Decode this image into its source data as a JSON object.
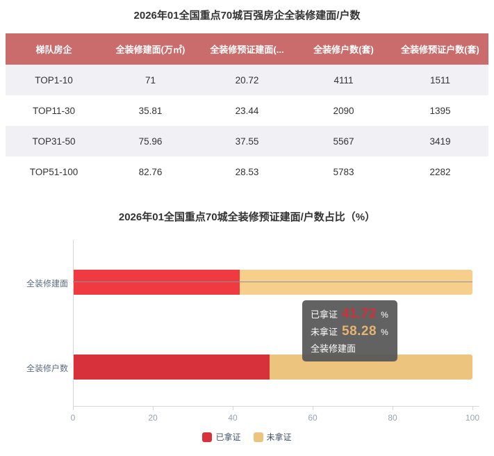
{
  "table": {
    "title": "2026年01全国重点70城百强房企全装修建面/户数",
    "columns": [
      "梯队房企",
      "全装修建面(万㎡)",
      "全装修预证建面(...",
      "全装修户数(套)",
      "全装修预证户数(套)"
    ],
    "rows": [
      [
        "TOP1-10",
        "71",
        "20.72",
        "4111",
        "1511"
      ],
      [
        "TOP11-30",
        "35.81",
        "23.44",
        "2090",
        "1395"
      ],
      [
        "TOP31-50",
        "75.96",
        "37.55",
        "5567",
        "3419"
      ],
      [
        "TOP51-100",
        "82.76",
        "28.53",
        "5783",
        "2282"
      ]
    ],
    "header_bg": "#ca6c6c",
    "stripe_bg": "#f0f0f5"
  },
  "chart": {
    "title": "2026年01全国重点70城全装修预证建面/户数占比（%）",
    "tooltip": {
      "lines": [
        {
          "label": "已拿证",
          "value": "41.72",
          "unit": "%",
          "value_color": "#d22f36"
        },
        {
          "label": "未拿证",
          "value": "58.28",
          "unit": "%",
          "value_color": "#e5b471"
        }
      ],
      "category": "全装修建面"
    },
    "legend": [
      {
        "label": "已拿证",
        "color": "#d7323b"
      },
      {
        "label": "未拿证",
        "color": "#ecc47e"
      }
    ]
  },
  "chart_data": {
    "type": "bar",
    "orientation": "horizontal",
    "stacked": true,
    "title": "2026年01全国重点70城全装修预证建面/户数占比（%）",
    "categories": [
      "全装修建面",
      "全装修户数"
    ],
    "series": [
      {
        "name": "已拿证",
        "values": [
          41.72,
          49.2
        ],
        "color": "#d7323b"
      },
      {
        "name": "未拿证",
        "values": [
          58.28,
          50.8
        ],
        "color": "#ecc47e"
      }
    ],
    "xlabel": "",
    "ylabel": "",
    "xlim": [
      0,
      100
    ],
    "xticks": [
      0,
      20,
      40,
      60,
      80,
      100
    ],
    "legend_position": "bottom",
    "grid": false
  }
}
